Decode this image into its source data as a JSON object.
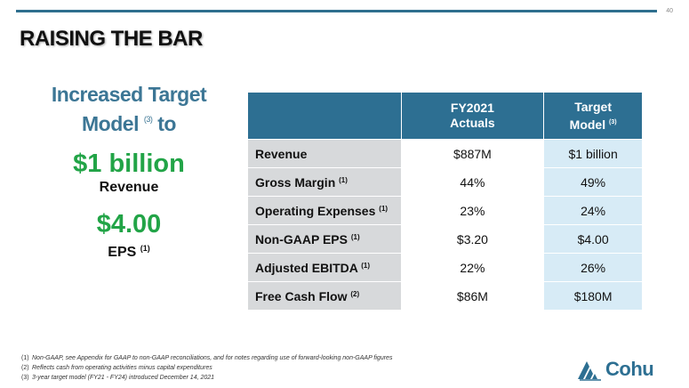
{
  "page": {
    "number": "40",
    "title": "RAISING THE BAR"
  },
  "left_panel": {
    "headline_line1": "Increased Target",
    "headline_line2_a": "Model",
    "headline_sup": "(3)",
    "headline_line2_b": "to",
    "revenue_value": "$1 billion",
    "revenue_label": "Revenue",
    "eps_value": "$4.00",
    "eps_label": "EPS",
    "eps_sup": "(1)"
  },
  "table": {
    "header": {
      "col1": "",
      "col2_line1": "FY2021",
      "col2_line2": "Actuals",
      "col3_line1": "Target",
      "col3_line2": "Model",
      "col3_sup": "(3)"
    },
    "rows": [
      {
        "label": "Revenue",
        "sup": "",
        "actual": "$887M",
        "target": "$1 billion"
      },
      {
        "label": "Gross Margin",
        "sup": "(1)",
        "actual": "44%",
        "target": "49%"
      },
      {
        "label": "Operating Expenses",
        "sup": "(1)",
        "actual": "23%",
        "target": "24%"
      },
      {
        "label": "Non-GAAP EPS",
        "sup": "(1)",
        "actual": "$3.20",
        "target": "$4.00"
      },
      {
        "label": "Adjusted EBITDA",
        "sup": "(1)",
        "actual": "22%",
        "target": "26%"
      },
      {
        "label": "Free Cash Flow",
        "sup": "(2)",
        "actual": "$86M",
        "target": "$180M"
      }
    ]
  },
  "footnotes": [
    {
      "num": "(1)",
      "text": "Non-GAAP, see Appendix for GAAP to non-GAAP reconciliations, and for notes regarding use of forward-looking non-GAAP figures"
    },
    {
      "num": "(2)",
      "text": "Reflects cash from operating activities minus capital expenditures"
    },
    {
      "num": "(3)",
      "text": "3-year target model (FY21 - FY24) introduced December 14, 2021"
    }
  ],
  "logo": {
    "text": "Cohu",
    "icon": "cohu-logo-icon",
    "color": "#2d6f92"
  },
  "colors": {
    "accent_blue": "#2d6f92",
    "headline_blue": "#3c7695",
    "highlight_green": "#22a447",
    "label_gray": "#d7d9db",
    "target_light_blue": "#d7ebf6"
  }
}
